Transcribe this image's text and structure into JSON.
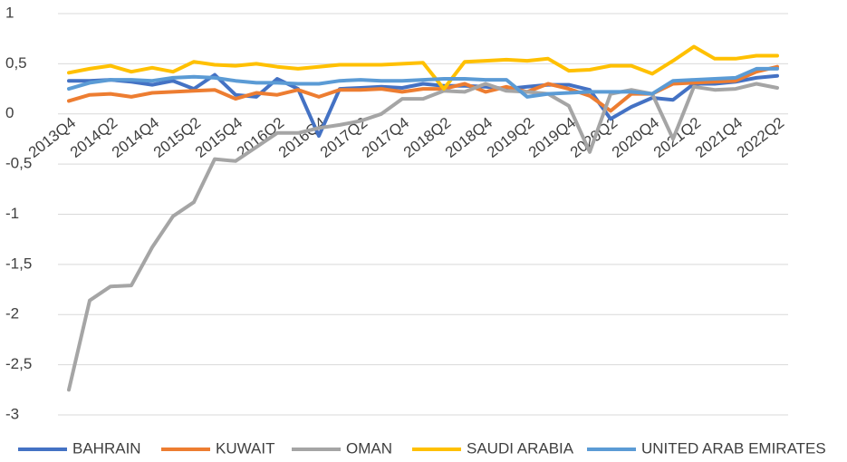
{
  "chart_data": {
    "type": "line",
    "categories": [
      "2013Q4",
      null,
      "2014Q2",
      null,
      "2014Q4",
      null,
      "2015Q2",
      null,
      "2015Q4",
      null,
      "2016Q2",
      null,
      "2016Q4",
      null,
      "2017Q2",
      null,
      "2017Q4",
      null,
      "2018Q2",
      null,
      "2018Q4",
      null,
      "2019Q2",
      null,
      "2019Q4",
      null,
      "2020Q2",
      null,
      "2020Q4",
      null,
      "2021Q2",
      null,
      "2021Q4",
      null,
      "2022Q2"
    ],
    "series": [
      {
        "name": "BAHRAIN",
        "color": "#4472c4",
        "values": [
          0.33,
          0.33,
          0.34,
          0.32,
          0.29,
          0.33,
          0.25,
          0.39,
          0.19,
          0.17,
          0.35,
          0.25,
          -0.22,
          0.25,
          0.26,
          0.27,
          0.26,
          0.3,
          0.28,
          0.28,
          0.27,
          0.25,
          0.27,
          0.29,
          0.29,
          0.24,
          -0.05,
          0.07,
          0.16,
          0.14,
          0.3,
          0.3,
          0.32,
          0.36,
          0.38
        ]
      },
      {
        "name": "KUWAIT",
        "color": "#ed7d31",
        "values": [
          0.13,
          0.19,
          0.2,
          0.17,
          0.21,
          0.22,
          0.23,
          0.24,
          0.15,
          0.21,
          0.19,
          0.24,
          0.17,
          0.24,
          0.24,
          0.25,
          0.22,
          0.25,
          0.25,
          0.3,
          0.22,
          0.27,
          0.22,
          0.3,
          0.25,
          0.18,
          0.03,
          0.2,
          0.2,
          0.3,
          0.31,
          0.32,
          0.33,
          0.42,
          0.47
        ]
      },
      {
        "name": "OMAN",
        "color": "#a5a5a5",
        "values": [
          -2.75,
          -1.86,
          -1.72,
          -1.71,
          -1.33,
          -1.02,
          -0.88,
          -0.45,
          -0.47,
          -0.33,
          -0.19,
          -0.19,
          -0.14,
          -0.11,
          -0.07,
          0.0,
          0.15,
          0.15,
          0.23,
          0.22,
          0.3,
          0.23,
          0.22,
          0.2,
          0.08,
          -0.38,
          0.2,
          0.24,
          0.2,
          -0.25,
          0.27,
          0.24,
          0.25,
          0.3,
          0.26
        ]
      },
      {
        "name": "SAUDI ARABIA",
        "color": "#ffc000",
        "values": [
          0.41,
          0.45,
          0.48,
          0.42,
          0.46,
          0.42,
          0.52,
          0.49,
          0.48,
          0.5,
          0.47,
          0.45,
          0.47,
          0.49,
          0.49,
          0.49,
          0.5,
          0.51,
          0.25,
          0.52,
          0.53,
          0.54,
          0.53,
          0.55,
          0.43,
          0.44,
          0.48,
          0.48,
          0.4,
          0.53,
          0.67,
          0.55,
          0.55,
          0.58,
          0.58
        ]
      },
      {
        "name": "UNITED ARAB EMIRATES",
        "color": "#5b9bd5",
        "values": [
          0.25,
          0.31,
          0.34,
          0.34,
          0.33,
          0.36,
          0.37,
          0.36,
          0.33,
          0.31,
          0.31,
          0.3,
          0.3,
          0.33,
          0.34,
          0.33,
          0.33,
          0.34,
          0.35,
          0.35,
          0.34,
          0.34,
          0.17,
          0.2,
          0.21,
          0.22,
          0.22,
          0.22,
          0.2,
          0.33,
          0.34,
          0.35,
          0.36,
          0.45,
          0.45
        ]
      }
    ],
    "ylim": [
      -3,
      1
    ],
    "yticks": [
      -3,
      {
        "value": -2.5,
        "label": "-2,5"
      },
      -2,
      {
        "value": -1.5,
        "label": "-1,5"
      },
      -1,
      {
        "value": -0.5,
        "label": "-0,5"
      },
      0,
      {
        "value": 0.5,
        "label": "0,5"
      },
      1
    ],
    "grid": true,
    "legend": "bottom"
  }
}
